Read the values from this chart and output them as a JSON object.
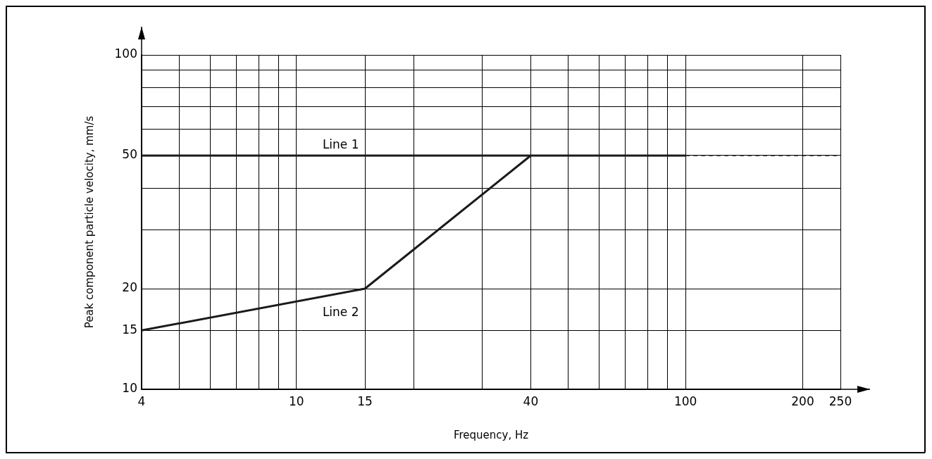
{
  "chart_data": {
    "type": "line",
    "xlabel": "Frequency, Hz",
    "ylabel": "Peak component particle velocity, mm/s",
    "log": "xy",
    "grid": true,
    "legend": false,
    "marker": "none",
    "xlim": [
      4,
      250
    ],
    "ylim": [
      10,
      100
    ],
    "xticks": [
      4,
      {
        "value": 5,
        "label": null
      },
      {
        "value": 6,
        "label": null
      },
      {
        "value": 7,
        "label": null
      },
      {
        "value": 8,
        "label": null
      },
      {
        "value": 9,
        "label": null
      },
      10,
      15,
      {
        "value": 20,
        "label": null
      },
      {
        "value": 30,
        "label": null
      },
      40,
      {
        "value": 50,
        "label": null
      },
      {
        "value": 60,
        "label": null
      },
      {
        "value": 70,
        "label": null
      },
      {
        "value": 80,
        "label": null
      },
      {
        "value": 90,
        "label": null
      },
      100,
      200,
      250
    ],
    "yticks": [
      10,
      15,
      20,
      {
        "value": 30,
        "label": null
      },
      {
        "value": 40,
        "label": null
      },
      50,
      {
        "value": 60,
        "label": null
      },
      {
        "value": 70,
        "label": null
      },
      {
        "value": 80,
        "label": null
      },
      {
        "value": 90,
        "label": null
      },
      100
    ],
    "series": [
      {
        "name": "Line 1",
        "color": "#1a1a1a",
        "x": [
          4,
          100
        ],
        "values": [
          50,
          50
        ]
      },
      {
        "color": "#1a1a1a",
        "x": [
          100,
          250
        ],
        "values": [
          50,
          50
        ],
        "line_style": "dashed"
      },
      {
        "name": "Line 2",
        "color": "#1a1a1a",
        "x": [
          4,
          15,
          40
        ],
        "values": [
          15,
          20,
          50
        ]
      }
    ]
  }
}
